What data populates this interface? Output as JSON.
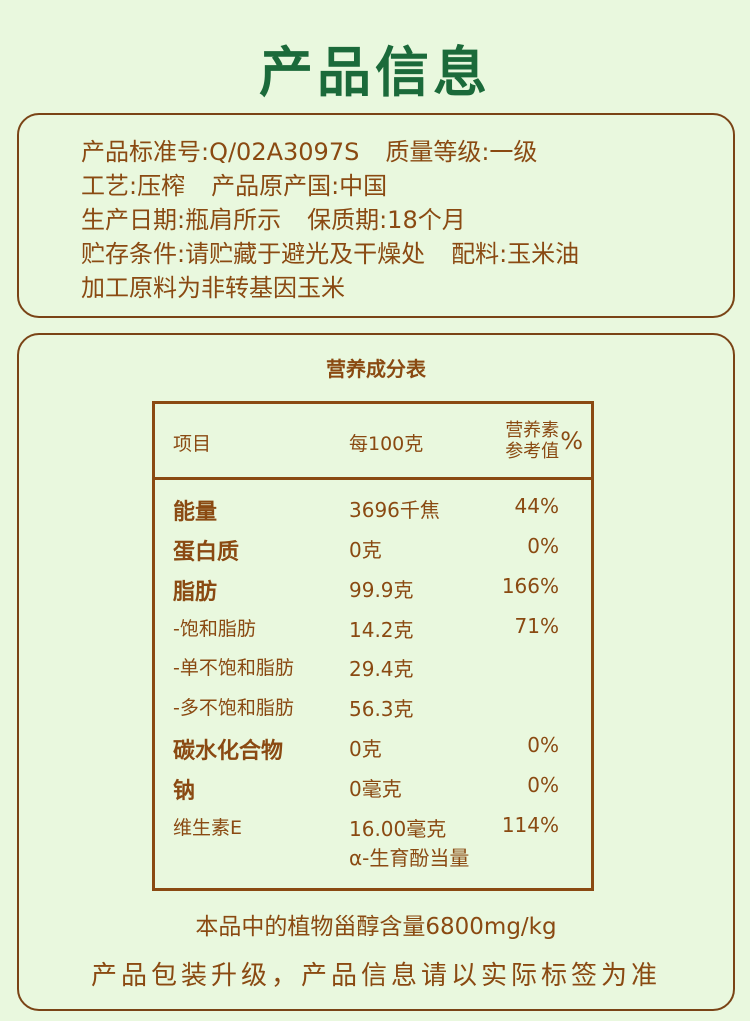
{
  "title": "产品信息",
  "info": {
    "lines": [
      [
        "产品标准号:Q/02A3097S",
        "质量等级:一级"
      ],
      [
        "工艺:压榨",
        "产品原产国:中国"
      ],
      [
        "生产日期:瓶肩所示",
        "保质期:18个月"
      ],
      [
        "贮存条件:请贮藏于避光及干燥处",
        "配料:玉米油"
      ],
      [
        "加工原料为非转基因玉米"
      ]
    ]
  },
  "nutrition": {
    "title": "营养成分表",
    "headers": {
      "item": "项目",
      "per100": "每100克",
      "nrv_line1": "营养素",
      "nrv_line2": "参考值",
      "nrv_pct": "%"
    },
    "rows": [
      {
        "name": "能量",
        "value": "3696千焦",
        "nrv": "44%",
        "style": "bold"
      },
      {
        "name": "蛋白质",
        "value": "0克",
        "nrv": "0%",
        "style": "bold"
      },
      {
        "name": "脂肪",
        "value": "99.9克",
        "nrv": "166%",
        "style": "bold"
      },
      {
        "name": "-饱和脂肪",
        "value": "14.2克",
        "nrv": "71%",
        "style": "sub"
      },
      {
        "name": "-单不饱和脂肪",
        "value": "29.4克",
        "nrv": "",
        "style": "sub"
      },
      {
        "name": "-多不饱和脂肪",
        "value": "56.3克",
        "nrv": "",
        "style": "sub"
      },
      {
        "name": "碳水化合物",
        "value": "0克",
        "nrv": "0%",
        "style": "bold"
      },
      {
        "name": "钠",
        "value": "0毫克",
        "nrv": "0%",
        "style": "bold"
      },
      {
        "name": "维生素E",
        "value": "16.00毫克",
        "nrv": "114%",
        "style": "sub",
        "value2": "α-生育酚当量"
      }
    ],
    "footnote": "本品中的植物甾醇含量6800mg/kg"
  },
  "bottom_note": "产品包装升级，产品信息请以实际标签为准",
  "colors": {
    "background": "#e9f8de",
    "text": "#8a4a12",
    "title": "#1b6a3a"
  }
}
